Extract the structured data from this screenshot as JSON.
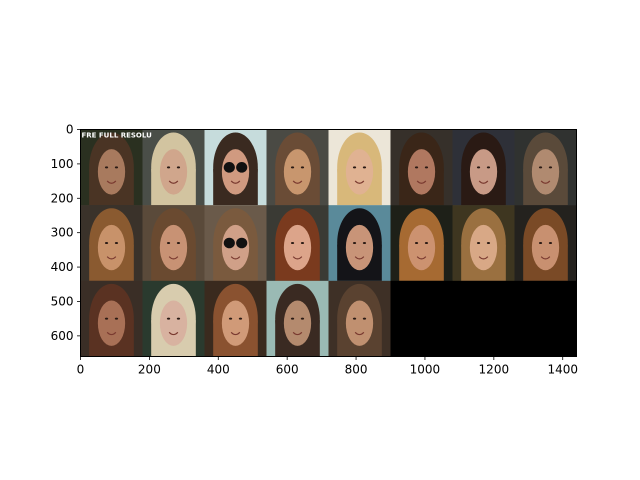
{
  "figure": {
    "xticks": [
      0,
      200,
      400,
      600,
      800,
      1000,
      1200,
      1400
    ],
    "yticks": [
      0,
      100,
      200,
      300,
      400,
      500,
      600
    ],
    "xlim": [
      0,
      1440
    ],
    "ylim": [
      660,
      0
    ]
  },
  "grid": {
    "columns": 8,
    "rows": 3,
    "tile_count": 21,
    "overlay_text": "FRE FULL RESOLU",
    "tile_colors": [
      [
        "#2a3020",
        "#4a4e48",
        "#c6dcdc",
        "#4a4a44",
        "#ece6d8",
        "#36302a",
        "#2e3038",
        "#303230"
      ],
      [
        "#3a322a",
        "#5a4a3a",
        "#6a5a4a",
        "#3a3a34",
        "#5a8a9a",
        "#1e2018",
        "#3e3620",
        "#24221e"
      ],
      [
        "#3a2e26",
        "#2a3a2e",
        "#3a2a1e",
        "#9abab4",
        "#3e3026",
        "#000000",
        "#000000",
        "#000000"
      ]
    ],
    "face_colors": [
      [
        "#a87a5e",
        "#d0a68c",
        "#d09a80",
        "#c8966e",
        "#e0b292",
        "#b07860",
        "#c89a86",
        "#b08a70"
      ],
      [
        "#c8926a",
        "#c89274",
        "#d0a088",
        "#dca48a",
        "#c89478",
        "#cc9270",
        "#d8a886",
        "#c89070"
      ],
      [
        "#a87056",
        "#d8b2a0",
        "#d09a78",
        "#b48a6e",
        "#c09070"
      ]
    ],
    "hair_colors": [
      [
        "#4a3424",
        "#d2c4a0",
        "#3a2a20",
        "#6a4c36",
        "#d8b87a",
        "#3a2618",
        "#2a1a14",
        "#5a4a3a"
      ],
      [
        "#8a5a30",
        "#6a4a30",
        "#7a5a3e",
        "#7a3a1e",
        "#141418",
        "#a66a32",
        "#9a7040",
        "#7a4a26"
      ],
      [
        "#5a3222",
        "#d8ccae",
        "#8a5230",
        "#3a2a22",
        "#5a4230"
      ]
    ]
  }
}
